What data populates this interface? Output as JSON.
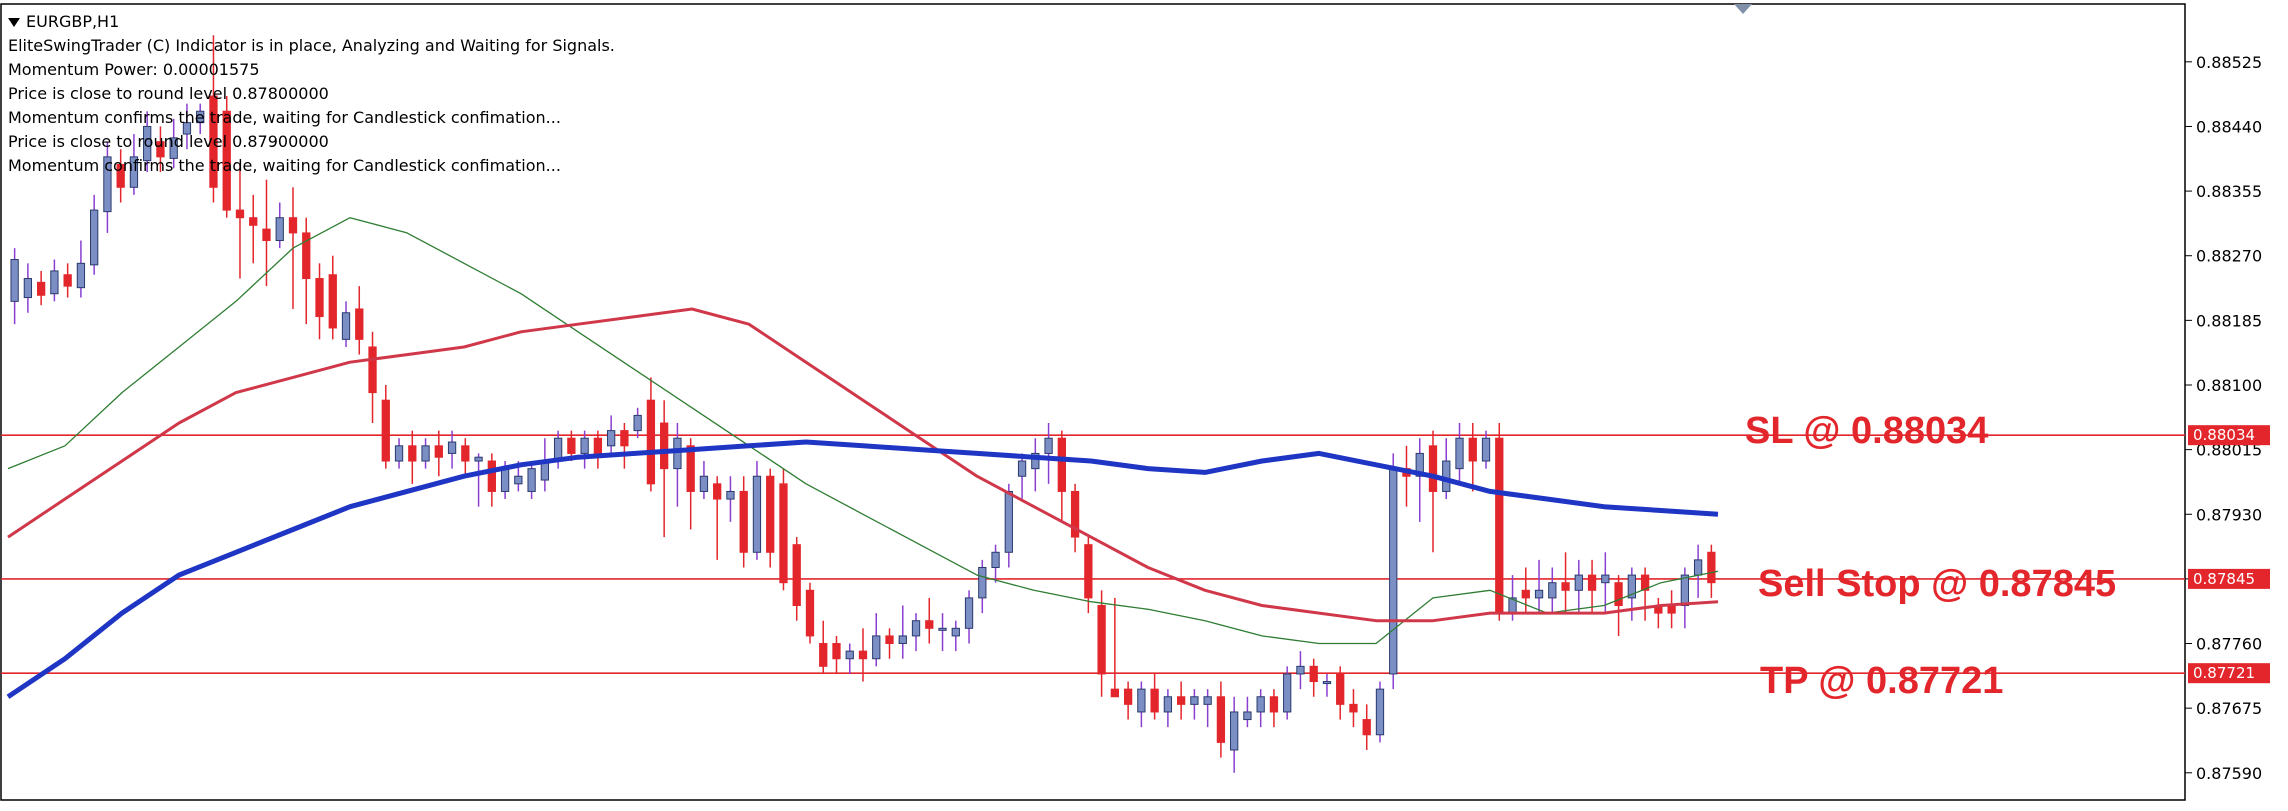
{
  "header": {
    "symbol": "EURGBP,H1",
    "lines": [
      "EliteSwingTrader (C) Indicator is in place, Analyzing and Waiting for Signals.",
      "",
      "Momentum Power: 0.00001575",
      "Price is close to round level 0.87800000",
      "Momentum confirms the trade, waiting for Candlestick confimation...",
      "",
      "Price is close to round level 0.87900000",
      "Momentum confirms the trade, waiting for Candlestick confimation..."
    ]
  },
  "annotations": {
    "sl": "SL @ 0.88034",
    "sell_stop": "Sell Stop @ 0.87845",
    "tp": "TP @ 0.87721"
  },
  "colors": {
    "bull": "#7b8fc4",
    "bear": "#e3262b",
    "ma_fast": "#2e7d32",
    "ma_mid": "#d0384a",
    "ma_slow": "#1f35c4",
    "levels": "#e3262b"
  },
  "chart_data": {
    "type": "line",
    "title": "EURGBP,H1",
    "ylim": [
      0.8757,
      0.8858
    ],
    "y_ticks": [
      "0.88525",
      "0.88440",
      "0.88355",
      "0.88270",
      "0.88185",
      "0.88100",
      "0.88015",
      "0.87930",
      "0.87845",
      "0.87760",
      "0.87675",
      "0.87590"
    ],
    "levels": [
      {
        "label": "0.88034",
        "value": 0.88034
      },
      {
        "label": "0.87845",
        "value": 0.87845
      },
      {
        "label": "0.87721",
        "value": 0.87721
      }
    ],
    "candles": [
      [
        0.8821,
        0.88265,
        0.8828,
        0.8818
      ],
      [
        0.88215,
        0.8824,
        0.8826,
        0.88195
      ],
      [
        0.88235,
        0.88218,
        0.8825,
        0.88205
      ],
      [
        0.8822,
        0.8825,
        0.88265,
        0.8821
      ],
      [
        0.88245,
        0.8823,
        0.8826,
        0.88215
      ],
      [
        0.88228,
        0.8826,
        0.8829,
        0.88215
      ],
      [
        0.88258,
        0.8833,
        0.8835,
        0.88245
      ],
      [
        0.88328,
        0.884,
        0.8842,
        0.883
      ],
      [
        0.8839,
        0.8836,
        0.8841,
        0.8834
      ],
      [
        0.8836,
        0.884,
        0.8843,
        0.8835
      ],
      [
        0.88395,
        0.8844,
        0.8846,
        0.8838
      ],
      [
        0.8842,
        0.884,
        0.8844,
        0.8838
      ],
      [
        0.88398,
        0.88425,
        0.8845,
        0.88385
      ],
      [
        0.8843,
        0.88445,
        0.8847,
        0.8841
      ],
      [
        0.88445,
        0.8846,
        0.8847,
        0.8843
      ],
      [
        0.8848,
        0.8836,
        0.8856,
        0.8834
      ],
      [
        0.8846,
        0.8833,
        0.8848,
        0.8832
      ],
      [
        0.8833,
        0.8832,
        0.8839,
        0.8824
      ],
      [
        0.8832,
        0.8831,
        0.8835,
        0.8826
      ],
      [
        0.88305,
        0.8829,
        0.8837,
        0.8823
      ],
      [
        0.8829,
        0.8832,
        0.8834,
        0.8828
      ],
      [
        0.8832,
        0.883,
        0.8836,
        0.882
      ],
      [
        0.883,
        0.8824,
        0.8832,
        0.8818
      ],
      [
        0.8824,
        0.8819,
        0.8826,
        0.8816
      ],
      [
        0.88245,
        0.88175,
        0.8827,
        0.8816
      ],
      [
        0.8816,
        0.88195,
        0.8821,
        0.8815
      ],
      [
        0.882,
        0.8816,
        0.8823,
        0.8814
      ],
      [
        0.8815,
        0.8809,
        0.8817,
        0.8805
      ],
      [
        0.8808,
        0.88,
        0.881,
        0.8799
      ],
      [
        0.88,
        0.8802,
        0.8803,
        0.8799
      ],
      [
        0.8802,
        0.88,
        0.8804,
        0.8797
      ],
      [
        0.88,
        0.8802,
        0.8803,
        0.8799
      ],
      [
        0.8802,
        0.88005,
        0.8804,
        0.8798
      ],
      [
        0.8801,
        0.88025,
        0.8804,
        0.8799
      ],
      [
        0.8802,
        0.88,
        0.8803,
        0.8798
      ],
      [
        0.88,
        0.88005,
        0.8801,
        0.8794
      ],
      [
        0.88,
        0.8796,
        0.8801,
        0.8794
      ],
      [
        0.8796,
        0.8799,
        0.88,
        0.8795
      ],
      [
        0.8797,
        0.8798,
        0.88,
        0.8796
      ],
      [
        0.8796,
        0.8799,
        0.88,
        0.8795
      ],
      [
        0.87975,
        0.88,
        0.8803,
        0.8796
      ],
      [
        0.88,
        0.8803,
        0.8804,
        0.8799
      ],
      [
        0.8803,
        0.8801,
        0.8804,
        0.88
      ],
      [
        0.8801,
        0.8803,
        0.8804,
        0.8799
      ],
      [
        0.8803,
        0.8801,
        0.8804,
        0.8799
      ],
      [
        0.8802,
        0.8804,
        0.8806,
        0.8801
      ],
      [
        0.8804,
        0.8802,
        0.8805,
        0.8799
      ],
      [
        0.8804,
        0.8806,
        0.8807,
        0.8803
      ],
      [
        0.8808,
        0.8797,
        0.8811,
        0.8796
      ],
      [
        0.8805,
        0.8799,
        0.8808,
        0.879
      ],
      [
        0.8799,
        0.8803,
        0.8805,
        0.8794
      ],
      [
        0.8802,
        0.8796,
        0.8803,
        0.8791
      ],
      [
        0.8796,
        0.8798,
        0.88,
        0.8795
      ],
      [
        0.8797,
        0.8795,
        0.8798,
        0.8787
      ],
      [
        0.8795,
        0.8796,
        0.8798,
        0.8792
      ],
      [
        0.8796,
        0.8788,
        0.8798,
        0.8786
      ],
      [
        0.8788,
        0.8798,
        0.88,
        0.8787
      ],
      [
        0.8798,
        0.8788,
        0.8799,
        0.8786
      ],
      [
        0.8797,
        0.8784,
        0.8799,
        0.8783
      ],
      [
        0.8789,
        0.8781,
        0.879,
        0.8779
      ],
      [
        0.8783,
        0.8777,
        0.8784,
        0.8776
      ],
      [
        0.8776,
        0.8773,
        0.8779,
        0.8772
      ],
      [
        0.8776,
        0.8774,
        0.8777,
        0.8772
      ],
      [
        0.8774,
        0.8775,
        0.8776,
        0.8772
      ],
      [
        0.8775,
        0.8774,
        0.8778,
        0.8771
      ],
      [
        0.8774,
        0.8777,
        0.878,
        0.8773
      ],
      [
        0.8777,
        0.8776,
        0.8778,
        0.8774
      ],
      [
        0.8776,
        0.8777,
        0.8781,
        0.8774
      ],
      [
        0.8777,
        0.8779,
        0.878,
        0.8775
      ],
      [
        0.8779,
        0.8778,
        0.8782,
        0.8776
      ],
      [
        0.8778,
        0.8778,
        0.878,
        0.8775
      ],
      [
        0.8777,
        0.8778,
        0.8779,
        0.8775
      ],
      [
        0.8778,
        0.8782,
        0.8783,
        0.8776
      ],
      [
        0.8782,
        0.8786,
        0.8787,
        0.878
      ],
      [
        0.8786,
        0.8788,
        0.8789,
        0.8784
      ],
      [
        0.8788,
        0.8796,
        0.8797,
        0.8786
      ],
      [
        0.8798,
        0.88,
        0.8801,
        0.8795
      ],
      [
        0.8799,
        0.8801,
        0.8803,
        0.8796
      ],
      [
        0.8801,
        0.8803,
        0.8805,
        0.8797
      ],
      [
        0.8803,
        0.8796,
        0.8804,
        0.8792
      ],
      [
        0.8796,
        0.879,
        0.8797,
        0.8788
      ],
      [
        0.8789,
        0.8782,
        0.879,
        0.878
      ],
      [
        0.8781,
        0.8772,
        0.8783,
        0.8769
      ],
      [
        0.877,
        0.8769,
        0.8782,
        0.8769
      ],
      [
        0.877,
        0.8768,
        0.8771,
        0.8766
      ],
      [
        0.8767,
        0.877,
        0.8771,
        0.8765
      ],
      [
        0.877,
        0.8767,
        0.8772,
        0.8766
      ],
      [
        0.8767,
        0.8769,
        0.877,
        0.8765
      ],
      [
        0.8769,
        0.8768,
        0.8771,
        0.8766
      ],
      [
        0.8768,
        0.8769,
        0.877,
        0.8766
      ],
      [
        0.8768,
        0.8769,
        0.877,
        0.8765
      ],
      [
        0.8769,
        0.8763,
        0.8771,
        0.8761
      ],
      [
        0.8762,
        0.8767,
        0.8769,
        0.8759
      ],
      [
        0.8766,
        0.8767,
        0.8769,
        0.8765
      ],
      [
        0.8767,
        0.8769,
        0.877,
        0.8765
      ],
      [
        0.8769,
        0.8767,
        0.877,
        0.8765
      ],
      [
        0.8767,
        0.8772,
        0.8773,
        0.8766
      ],
      [
        0.8772,
        0.8773,
        0.8775,
        0.877
      ],
      [
        0.8773,
        0.8771,
        0.8774,
        0.8769
      ],
      [
        0.8771,
        0.8771,
        0.8772,
        0.8769
      ],
      [
        0.8772,
        0.8768,
        0.8773,
        0.8766
      ],
      [
        0.8768,
        0.8767,
        0.877,
        0.8765
      ],
      [
        0.8766,
        0.8764,
        0.8768,
        0.8762
      ],
      [
        0.8764,
        0.877,
        0.8771,
        0.8763
      ],
      [
        0.8772,
        0.8799,
        0.8801,
        0.877
      ],
      [
        0.8799,
        0.8798,
        0.8802,
        0.8794
      ],
      [
        0.8798,
        0.8801,
        0.8803,
        0.8792
      ],
      [
        0.8802,
        0.8796,
        0.8804,
        0.8788
      ],
      [
        0.8796,
        0.88,
        0.8803,
        0.8795
      ],
      [
        0.8799,
        0.8803,
        0.8805,
        0.8797
      ],
      [
        0.8803,
        0.88,
        0.8805,
        0.8796
      ],
      [
        0.88,
        0.8803,
        0.8804,
        0.8799
      ],
      [
        0.8803,
        0.878,
        0.8805,
        0.8779
      ],
      [
        0.878,
        0.8782,
        0.8785,
        0.8779
      ],
      [
        0.8783,
        0.8782,
        0.8786,
        0.878
      ],
      [
        0.8782,
        0.8783,
        0.8787,
        0.878
      ],
      [
        0.8782,
        0.8784,
        0.8786,
        0.878
      ],
      [
        0.8784,
        0.8783,
        0.8788,
        0.878
      ],
      [
        0.8783,
        0.8785,
        0.8787,
        0.878
      ],
      [
        0.8785,
        0.8783,
        0.8787,
        0.878
      ],
      [
        0.8784,
        0.8785,
        0.8788,
        0.878
      ],
      [
        0.8784,
        0.8781,
        0.8785,
        0.8777
      ],
      [
        0.8782,
        0.8785,
        0.8786,
        0.8779
      ],
      [
        0.8785,
        0.8783,
        0.8786,
        0.8779
      ],
      [
        0.8781,
        0.878,
        0.8782,
        0.8778
      ],
      [
        0.8781,
        0.878,
        0.8783,
        0.8778
      ],
      [
        0.8781,
        0.8785,
        0.8786,
        0.8778
      ],
      [
        0.8785,
        0.8787,
        0.8789,
        0.8782
      ],
      [
        0.8788,
        0.8784,
        0.8789,
        0.8782
      ]
    ],
    "series": [
      {
        "values": [
          0.8799,
          0.8802,
          0.8809,
          0.8815,
          0.8821,
          0.8828,
          0.8832,
          0.883,
          0.8826,
          0.8822,
          0.8817,
          0.8812,
          0.8807,
          0.8802,
          0.8797,
          0.8793,
          0.8789,
          0.8785,
          0.8783,
          0.87815,
          0.87805,
          0.8779,
          0.8777,
          0.8776,
          0.8776,
          0.8782,
          0.8783,
          0.878,
          0.8781,
          0.8784,
          0.87855
        ]
      },
      {
        "values": [
          0.879,
          0.8795,
          0.88,
          0.8805,
          0.8809,
          0.8811,
          0.8813,
          0.8814,
          0.8815,
          0.8817,
          0.8818,
          0.8819,
          0.882,
          0.8818,
          0.8813,
          0.8808,
          0.8803,
          0.8798,
          0.8794,
          0.879,
          0.8786,
          0.8783,
          0.8781,
          0.878,
          0.8779,
          0.8779,
          0.878,
          0.878,
          0.878,
          0.8781,
          0.87815
        ]
      },
      {
        "values": [
          0.8769,
          0.8774,
          0.878,
          0.8785,
          0.8788,
          0.8791,
          0.8794,
          0.8796,
          0.8798,
          0.87995,
          0.88005,
          0.8801,
          0.88015,
          0.8802,
          0.88025,
          0.8802,
          0.88015,
          0.8801,
          0.88005,
          0.88,
          0.8799,
          0.87985,
          0.88,
          0.8801,
          0.87995,
          0.8798,
          0.8796,
          0.8795,
          0.8794,
          0.87935,
          0.8793
        ]
      }
    ]
  }
}
